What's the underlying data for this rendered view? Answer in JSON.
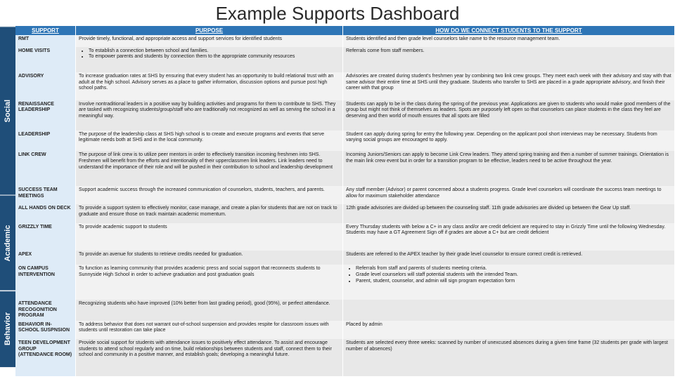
{
  "title": "Example Supports Dashboard",
  "headers": {
    "support": "SUPPORT",
    "purpose": "PURPOSE",
    "connect": "HOW DO WE CONNECT STUDENTS TO THE SUPPORT"
  },
  "categories": [
    {
      "name": "Social",
      "rows": [
        {
          "support": "RMT",
          "purpose": "Provide timely, functional, and appropriate access and support services for identified students",
          "connect": "Students identified and then grade level counselors take name to the resource management team."
        },
        {
          "support": "HOME VISITS",
          "purpose_list": [
            "To establish a connection between school and families.",
            "To empower parents and students by connection them to the appropriate community resources"
          ],
          "connect": "Referrals come from staff members."
        },
        {
          "support": "ADVISORY",
          "purpose": "To increase graduation rates at SHS by ensuring that every student has an opportunity to build relational trust with an adult at the high school. Advisory serves as a place to gather information, discussion options and pursue post high school paths.",
          "connect": "Advisories are created during student's freshmen year by combining two link crew groups. They meet each week with their advisory and stay with that same advisor their entire time at SHS until they graduate. Students who transfer to SHS are placed in a grade appropriate advisory, and finish their career with that group"
        },
        {
          "support": "RENAISSANCE LEADERSHIP",
          "purpose": "Involve nontraditional leaders in a positive way by building activities and programs for them to contribute to SHS. They are tasked with recognizing students/group/staff who are traditionally not recognized as well as serving the school in a meaningful way.",
          "connect": "Students can apply to be in the class during the spring of the previous year. Applications are given to students who would make good members of the group but might not think of themselves as leaders. Spots are purposely left open so that counselors can place students in the class they feel are deserving and then world of mouth ensures that all spots are filled"
        },
        {
          "support": "LEADERSHIP",
          "purpose": "The purpose of the leadership class at SHS high school is to create and execute programs and events that serve legitimate needs both at SHS and in the local community.",
          "connect": "Student can apply during spring for entry the following year. Depending on the applicant pool short interviews may be necessary. Students from varying social groups are encouraged to apply."
        },
        {
          "support": "LINK CREW",
          "purpose": "The purpose of link crew is to utilize peer mentors in order to effectively transition incoming freshmen into SHS. Freshmen will benefit from the efforts and intentionality of their upperclassmen link leaders. Link leaders need to understand the importance of their role and will be pushed in their contribution to school and leadership development",
          "connect": "Incoming Juniors/Seniors can apply to become Link Crew leaders. They attend spring training and then a number of summer trainings. Orientation is the main link crew event but in order for a transition program to be effective, leaders need to be active throughout the year."
        },
        {
          "support": "SUCCESS TEAM MEETINGS",
          "purpose": "Support academic success through the increased communication of counselors, students, teachers, and parents.",
          "connect": "Any staff member (Advisor) or parent concerned about a students progress. Grade level counselors will coordinate the success team meetings to allow for maximum stakeholder attendance"
        }
      ]
    },
    {
      "name": "Academic",
      "rows": [
        {
          "support": "ALL HANDS ON DECK",
          "purpose": "To provide a support system to effectively monitor, case manage, and create a plan for students that are not on track to graduate and ensure those on track maintain academic momentum.",
          "connect": "12th grade advisories are divided up between the counseling staff. 11th grade advisories are divided up between the Gear Up staff."
        },
        {
          "support": "GRIZZLY TIME",
          "purpose": "To provide academic support to students",
          "connect": "Every Thursday students with below a C+ in any class and/or are credit deficient are required to stay in Grizzly Time until the following Wednesday. Students may have a GT Agreement Sign off if grades are above a C+ but are credit deficient"
        },
        {
          "support": "APEX",
          "purpose": "To provide an avenue for students to retrieve credits needed for graduation.",
          "connect": "Students are referred to the APEX teacher by their grade level counselor to ensure correct credit is retrieved."
        },
        {
          "support": "ON CAMPUS INTERVENTION",
          "purpose": "To function as learning community that provides academic press and social support that reconnects students to Sunnyside High School in order to achieve graduation and post graduation goals",
          "connect_list": [
            "Referrals from staff and parents of students meeting criteria.",
            "Grade level counselors will staff potential students with the intended Team.",
            "Parent, student, counselor, and admin will sign program expectation form"
          ]
        }
      ]
    },
    {
      "name": "Behavior",
      "rows": [
        {
          "support": "ATTENDANCE RECOGONITION PROGRAM",
          "purpose": "Recognizing students who have improved (10% better from last grading period), good (95%), or perfect attendance.",
          "connect": ""
        },
        {
          "support": "BEHAVIOR IN-SCHOOL SUSPNSION",
          "purpose": "To address behavior that does not warrant out-of-school suspension and provides respite for classroom issues with students until restoration can take place",
          "connect": "Placed by admin"
        },
        {
          "support": "TEEN DEVELOPMENT GROUP (ATTENDANCE ROOM)",
          "purpose": "Provide social support for students with attendance issues to positively effect attendance. To assist and encourage students to attend school regularly and on time, build relationships between students and staff, connect them to their school and community in a positive manner, and establish goals; developing a meaningful future.",
          "connect": "Students are selected every three weeks: scanned by number of unexcused absences during a given time frame (32 students per grade with largest number of absences)"
        }
      ]
    }
  ],
  "colors": {
    "cat_bg": "#1f4e79",
    "hdr_bg": "#2e75b6",
    "support_bg": "#deebf7"
  }
}
